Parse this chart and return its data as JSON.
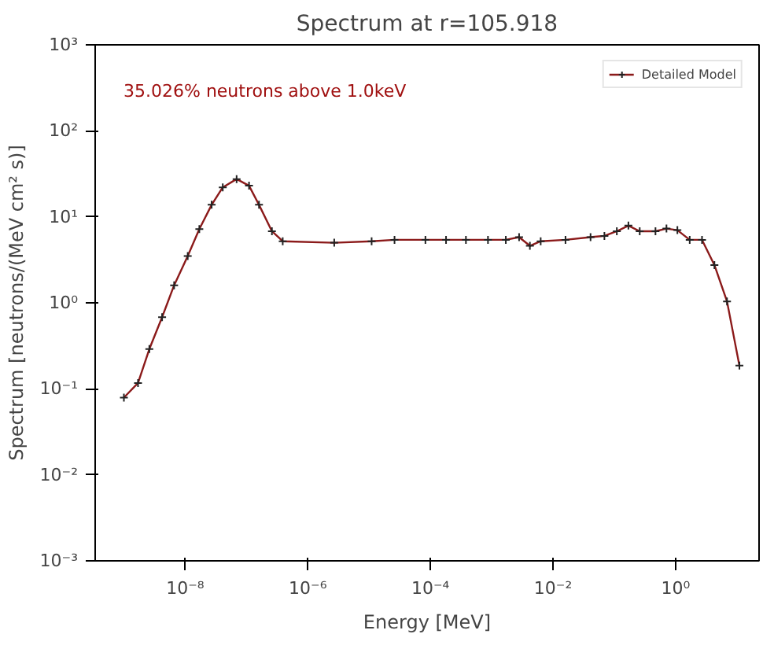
{
  "chart_data": {
    "type": "line",
    "title": "Spectrum at r=105.918",
    "xlabel": "Energy [MeV]",
    "ylabel": "Spectrum [neutrons/(MeV cm² s)]",
    "annotations": [
      "35.026% neutrons above 1.0keV"
    ],
    "log": "xy",
    "grid": false,
    "legend": "top right",
    "marker": "cross",
    "line_style": "solid",
    "xlim": [
      3.4e-10,
      23
    ],
    "ylim": [
      0.001,
      1000
    ],
    "xticks": [
      {
        "value": 1e-08,
        "label": "10⁻⁸"
      },
      {
        "value": 1e-06,
        "label": "10⁻⁶"
      },
      {
        "value": 0.0001,
        "label": "10⁻⁴"
      },
      {
        "value": 0.01,
        "label": "10⁻²"
      },
      {
        "value": 1,
        "label": "10⁰"
      }
    ],
    "yticks": [
      {
        "value": 0.001,
        "label": "10⁻³"
      },
      {
        "value": 0.01,
        "label": "10⁻²"
      },
      {
        "value": 0.1,
        "label": "10⁻¹"
      },
      {
        "value": 1,
        "label": "10⁰"
      },
      {
        "value": 10,
        "label": "10¹"
      },
      {
        "value": 100,
        "label": "10²"
      },
      {
        "value": 1000,
        "label": "10³"
      }
    ],
    "series": [
      {
        "name": "Detailed Model",
        "color": "#8b1a1a",
        "x": [
          1e-09,
          1.7e-09,
          2.6e-09,
          4.2e-09,
          6.6e-09,
          1.1e-08,
          1.7e-08,
          2.7e-08,
          4.1e-08,
          6.9e-08,
          1.1e-07,
          1.6e-07,
          2.6e-07,
          3.9e-07,
          2.7e-06,
          1.1e-05,
          2.6e-05,
          8.3e-05,
          0.00018,
          0.00038,
          0.00087,
          0.0017,
          0.0028,
          0.0042,
          0.0063,
          0.016,
          0.041,
          0.069,
          0.11,
          0.17,
          0.26,
          0.47,
          0.71,
          1.07,
          1.7,
          2.7,
          4.3,
          6.9,
          11
        ],
        "values": [
          0.079,
          0.117,
          0.29,
          0.68,
          1.6,
          3.5,
          7.2,
          13.8,
          22,
          27.5,
          23,
          13.8,
          6.8,
          5.2,
          5.0,
          5.2,
          5.4,
          5.4,
          5.4,
          5.4,
          5.4,
          5.4,
          5.8,
          4.6,
          5.2,
          5.4,
          5.8,
          6.0,
          6.8,
          7.9,
          6.8,
          6.8,
          7.3,
          7.0,
          5.4,
          5.4,
          2.75,
          1.04,
          0.186
        ]
      }
    ]
  }
}
